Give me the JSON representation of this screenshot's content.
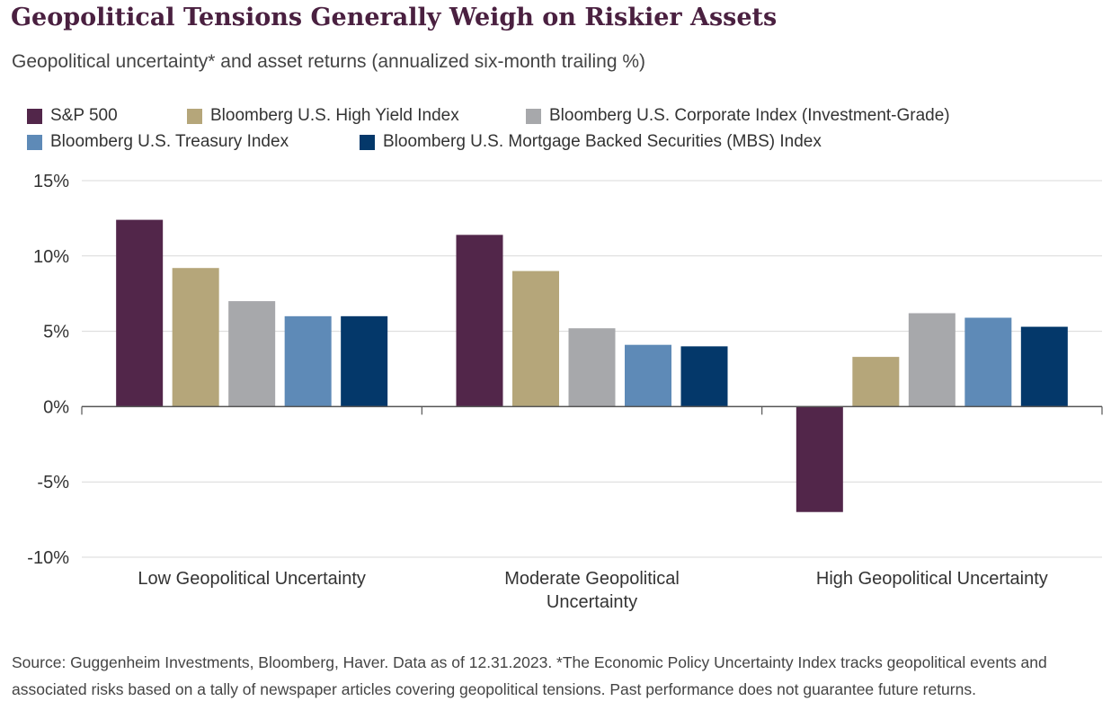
{
  "title": "Geopolitical Tensions Generally Weigh on Riskier Assets",
  "subtitle": "Geopolitical uncertainty* and asset returns (annualized six-month trailing %)",
  "source": "Source: Guggenheim Investments, Bloomberg, Haver. Data as of 12.31.2023. *The Economic Policy Uncertainty Index tracks geopolitical events and associated risks based on a tally of newspaper articles covering geopolitical tensions. Past performance does not guarantee future returns.",
  "chart_data": {
    "type": "bar",
    "categories": [
      [
        "Low Geopolitical Uncertainty"
      ],
      [
        "Moderate Geopolitical",
        "Uncertainty"
      ],
      [
        "High Geopolitical Uncertainty"
      ]
    ],
    "series": [
      {
        "name": "S&P 500",
        "color": "#52264a",
        "values": [
          12.4,
          11.4,
          -7.0
        ]
      },
      {
        "name": "Bloomberg U.S. High Yield Index",
        "color": "#b5a67a",
        "values": [
          9.2,
          9.0,
          3.3
        ]
      },
      {
        "name": "Bloomberg U.S. Corporate Index (Investment-Grade)",
        "color": "#a7a8ab",
        "values": [
          7.0,
          5.2,
          6.2
        ]
      },
      {
        "name": "Bloomberg U.S. Treasury Index",
        "color": "#5e8ab7",
        "values": [
          6.0,
          4.1,
          5.9
        ]
      },
      {
        "name": "Bloomberg U.S. Mortgage Backed Securities (MBS) Index",
        "color": "#04386a",
        "values": [
          6.0,
          4.0,
          5.3
        ]
      }
    ],
    "yticks": [
      "15%",
      "10%",
      "5%",
      "0%",
      "-5%",
      "-10%"
    ],
    "ytick_values": [
      15,
      10,
      5,
      0,
      -5,
      -10
    ],
    "ylim": [
      -10,
      15
    ],
    "grid": true,
    "legend_position": "top"
  }
}
